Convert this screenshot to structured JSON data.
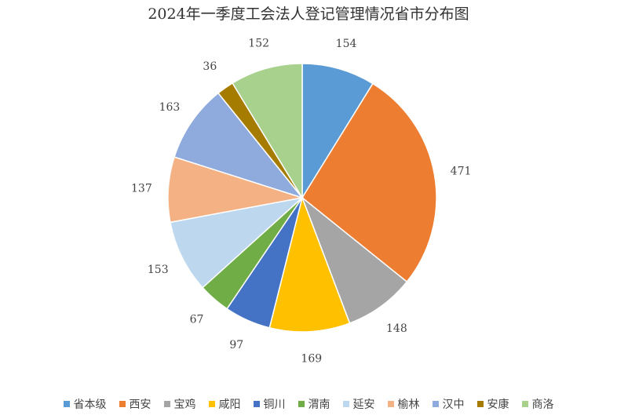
{
  "chart_data": {
    "type": "pie",
    "title": "2024年一季度工会法人登记管理情况省市分布图",
    "categories": [
      "省本级",
      "西安",
      "宝鸡",
      "咸阳",
      "铜川",
      "渭南",
      "延安",
      "榆林",
      "汉中",
      "安康",
      "商洛"
    ],
    "values": [
      154,
      471,
      148,
      169,
      97,
      67,
      153,
      137,
      163,
      36,
      152
    ],
    "colors": [
      "#5B9BD5",
      "#ED7D31",
      "#A5A5A5",
      "#FFC000",
      "#4472C4",
      "#70AD47",
      "#BDD7EE",
      "#F4B183",
      "#8FAADC",
      "#A67C00",
      "#A9D18E"
    ],
    "legend": "bottom",
    "start_angle": "top, clockwise"
  }
}
